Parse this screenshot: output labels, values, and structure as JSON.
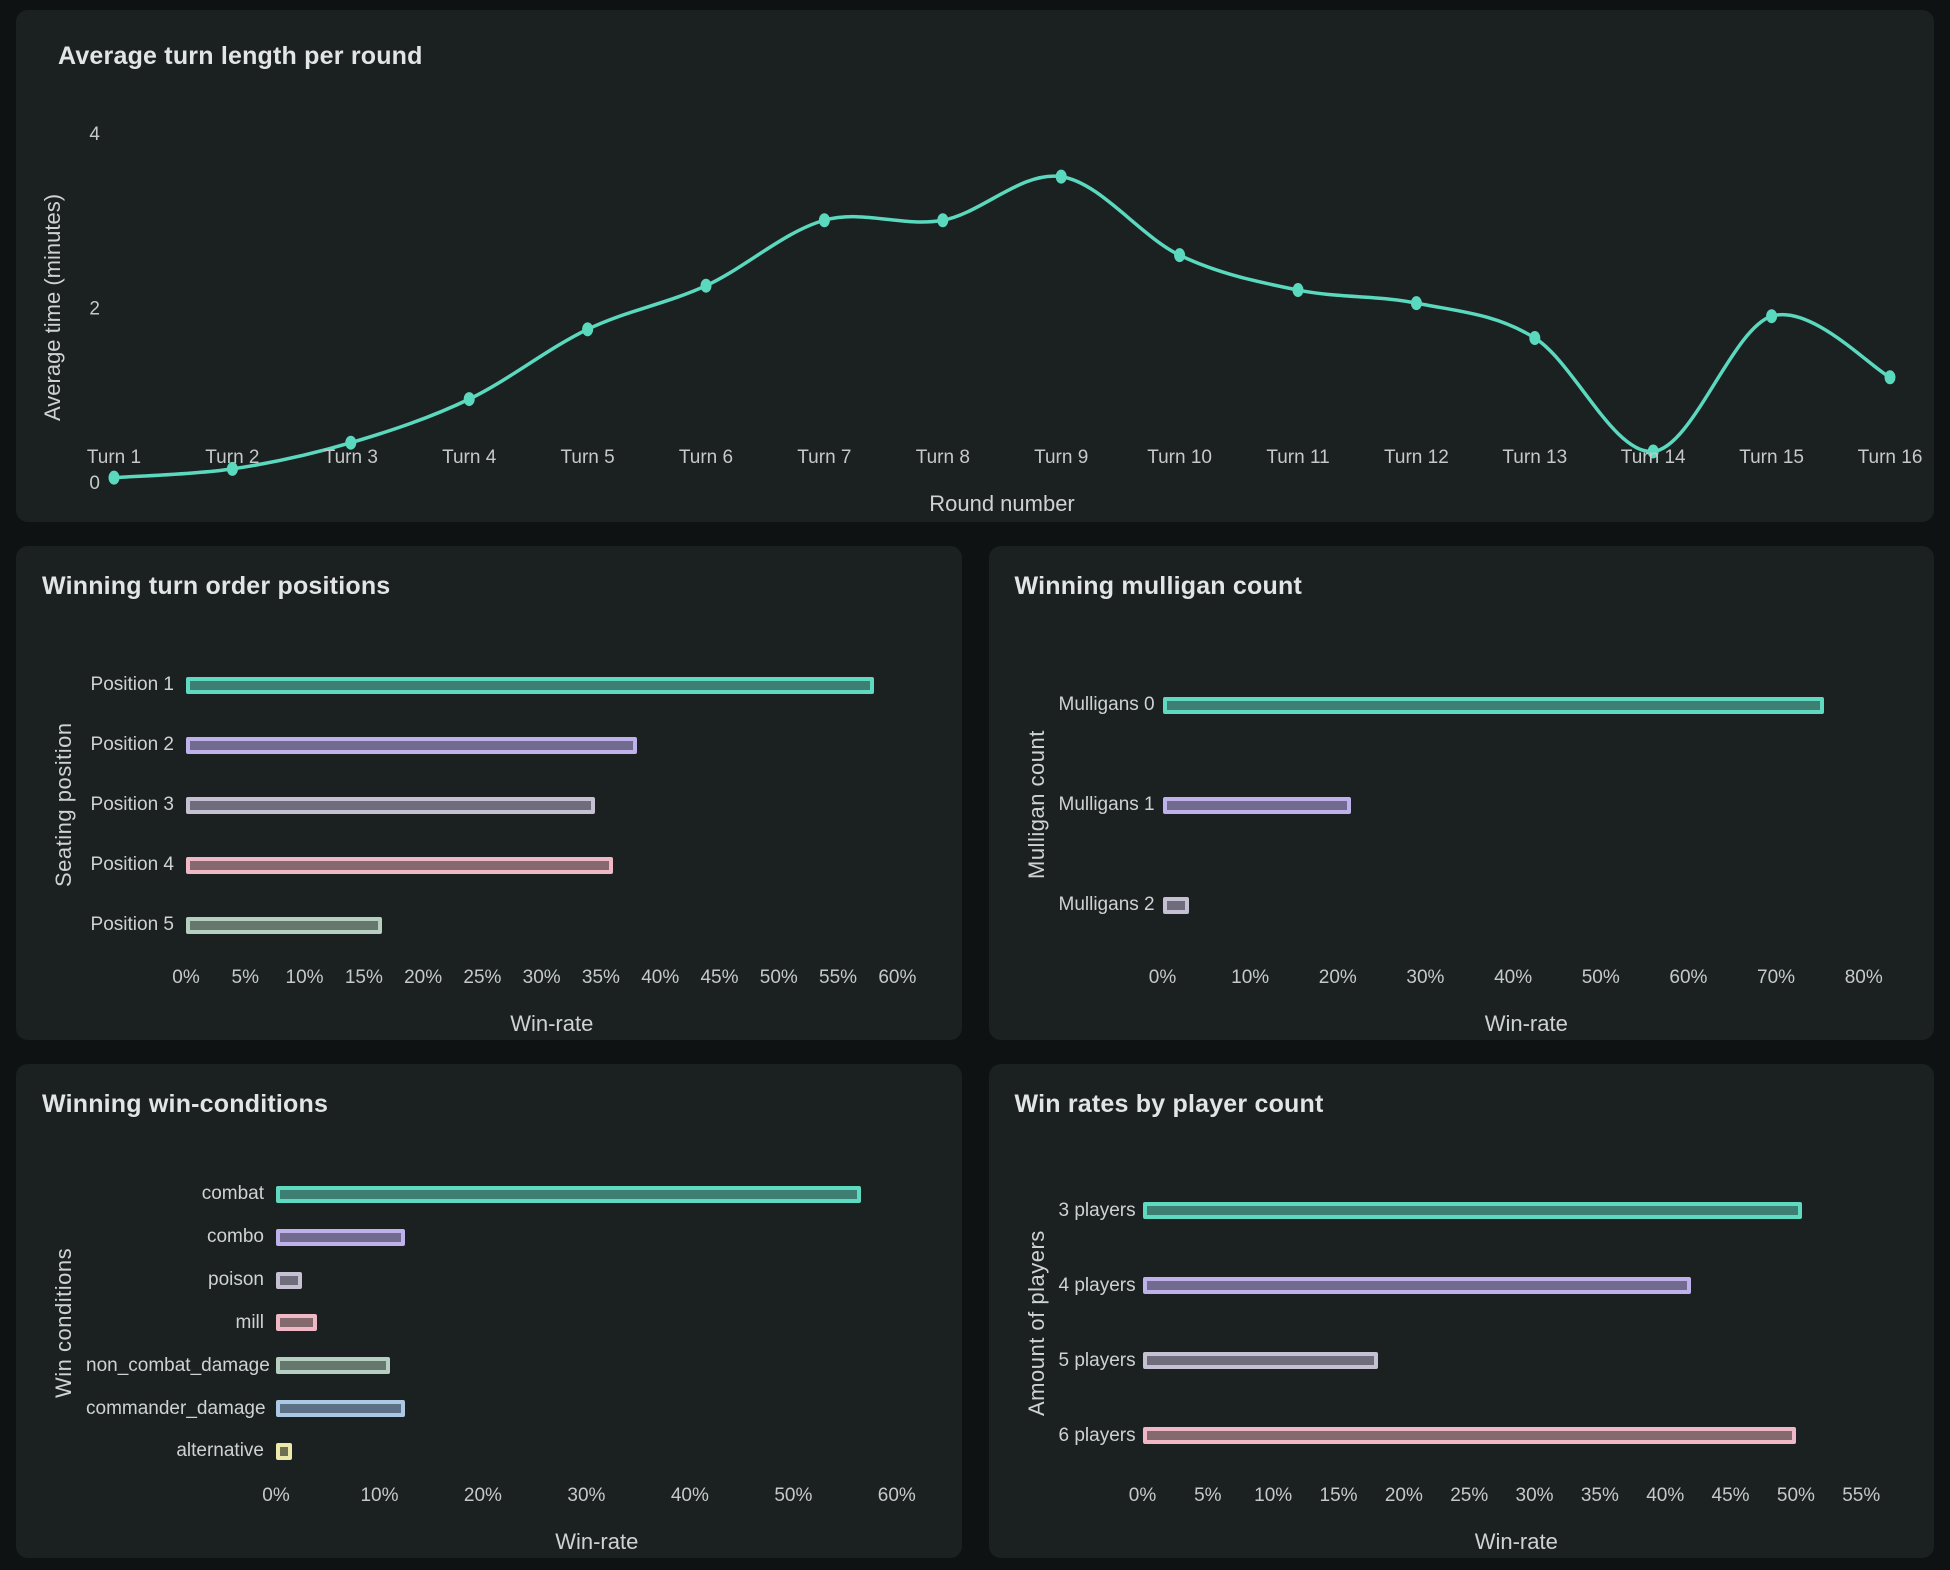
{
  "theme": {
    "page_bg": "#0e1212",
    "panel_bg": "#1b2121",
    "title_color": "#e3e5e5",
    "axis_label_color": "#d0d2d2",
    "tick_color": "#c7c9c9",
    "line_color": "#5bd9bf"
  },
  "palette": {
    "teal": {
      "fill": "#3d8073",
      "stroke": "#5fdac1"
    },
    "purple": {
      "fill": "#716b8d",
      "stroke": "#bfb1ec"
    },
    "gray": {
      "fill": "#6f6d7b",
      "stroke": "#c5c1d3"
    },
    "rose": {
      "fill": "#846a6f",
      "stroke": "#f0b7c7"
    },
    "sage": {
      "fill": "#66786e",
      "stroke": "#b7cfc0"
    },
    "steel": {
      "fill": "#5d7186",
      "stroke": "#abc9e5"
    },
    "olive": {
      "fill": "#6e7054",
      "stroke": "#eceaaa"
    }
  },
  "chart_data": [
    {
      "id": "turn-length",
      "type": "line",
      "title": "Average turn length per round",
      "xlabel": "Round number",
      "ylabel": "Average time (minutes)",
      "categories": [
        "Turn 1",
        "Turn 2",
        "Turn 3",
        "Turn 4",
        "Turn 5",
        "Turn 6",
        "Turn 7",
        "Turn 8",
        "Turn 9",
        "Turn 10",
        "Turn 11",
        "Turn 12",
        "Turn 13",
        "Turn 14",
        "Turn 15",
        "Turn 16"
      ],
      "values": [
        0.05,
        0.15,
        0.45,
        0.95,
        1.75,
        2.25,
        3.0,
        3.0,
        3.5,
        2.6,
        2.2,
        2.05,
        1.65,
        0.35,
        1.9,
        1.2
      ],
      "ylim": [
        0,
        4
      ],
      "yticks": [
        0,
        2,
        4
      ],
      "grid": false,
      "legend": null,
      "line_shape": "spline"
    },
    {
      "id": "turn-order",
      "type": "bar",
      "orientation": "horizontal",
      "title": "Winning turn order positions",
      "xlabel": "Win-rate",
      "ylabel": "Seating position",
      "categories": [
        "Position 1",
        "Position 2",
        "Position 3",
        "Position 4",
        "Position 5"
      ],
      "values": [
        58,
        38,
        34.5,
        36,
        16.5
      ],
      "colors": [
        "teal",
        "purple",
        "gray",
        "rose",
        "sage"
      ],
      "axis": {
        "min": 0,
        "max": 60,
        "step": 5,
        "suffix": "%",
        "track_max": 61.7
      }
    },
    {
      "id": "mulligans",
      "type": "bar",
      "orientation": "horizontal",
      "title": "Winning mulligan count",
      "xlabel": "Win-rate",
      "ylabel": "Mulligan count",
      "categories": [
        "Mulligans 0",
        "Mulligans 1",
        "Mulligans 2"
      ],
      "values": [
        75.5,
        21.5,
        3
      ],
      "colors": [
        "teal",
        "purple",
        "gray"
      ],
      "axis": {
        "min": 0,
        "max": 80,
        "step": 10,
        "suffix": "%",
        "track_max": 83
      }
    },
    {
      "id": "conditions",
      "type": "bar",
      "orientation": "horizontal",
      "title": "Winning win-conditions",
      "xlabel": "Win-rate",
      "ylabel": "Win conditions",
      "categories": [
        "combat",
        "combo",
        "poison",
        "mill",
        "non_combat_damage",
        "commander_damage",
        "alternative"
      ],
      "values": [
        56.5,
        12.5,
        2.5,
        4,
        11,
        12.5,
        1.5
      ],
      "colors": [
        "teal",
        "purple",
        "gray",
        "rose",
        "sage",
        "steel",
        "olive"
      ],
      "axis": {
        "min": 0,
        "max": 60,
        "step": 10,
        "suffix": "%",
        "track_max": 62
      }
    },
    {
      "id": "players",
      "type": "bar",
      "orientation": "horizontal",
      "title": "Win rates by player count",
      "xlabel": "Win-rate",
      "ylabel": "Amount of players",
      "categories": [
        "3 players",
        "4 players",
        "5 players",
        "6 players"
      ],
      "values": [
        50.5,
        42,
        18,
        50
      ],
      "colors": [
        "teal",
        "purple",
        "gray",
        "rose"
      ],
      "axis": {
        "min": 0,
        "max": 55,
        "step": 5,
        "suffix": "%",
        "track_max": 57.2
      }
    }
  ]
}
